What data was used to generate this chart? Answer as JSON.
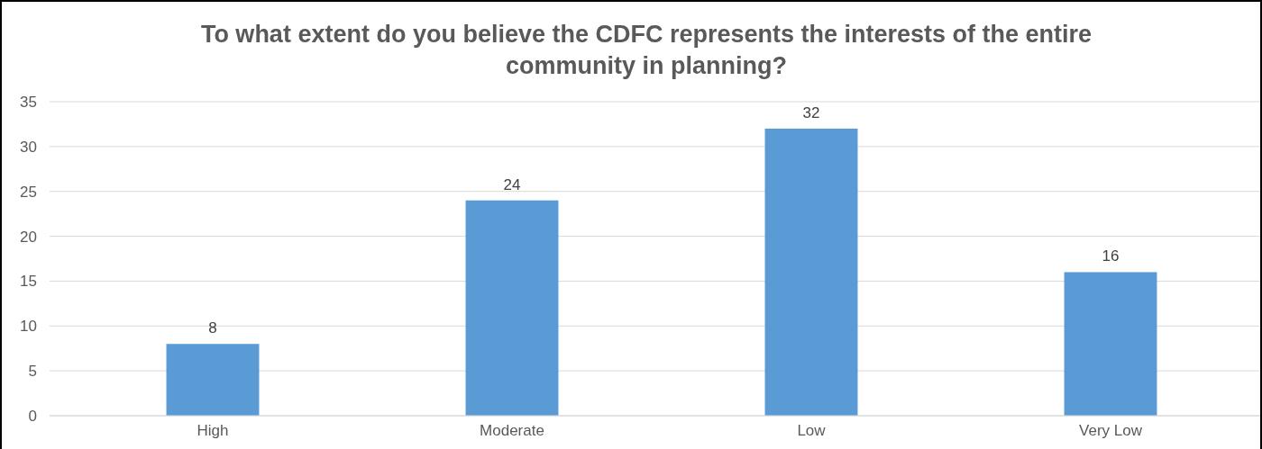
{
  "chart_data": {
    "type": "bar",
    "title": "To what extent do you believe the CDFC represents the interests of the entire community in planning?",
    "categories": [
      "High",
      "Moderate",
      "Low",
      "Very Low"
    ],
    "values": [
      8,
      24,
      32,
      16
    ],
    "color": "#5b9bd5",
    "ylim": [
      0,
      35
    ],
    "yticks": [
      0,
      5,
      10,
      15,
      20,
      25,
      30,
      35
    ],
    "grid": "y",
    "data_labels": true
  }
}
